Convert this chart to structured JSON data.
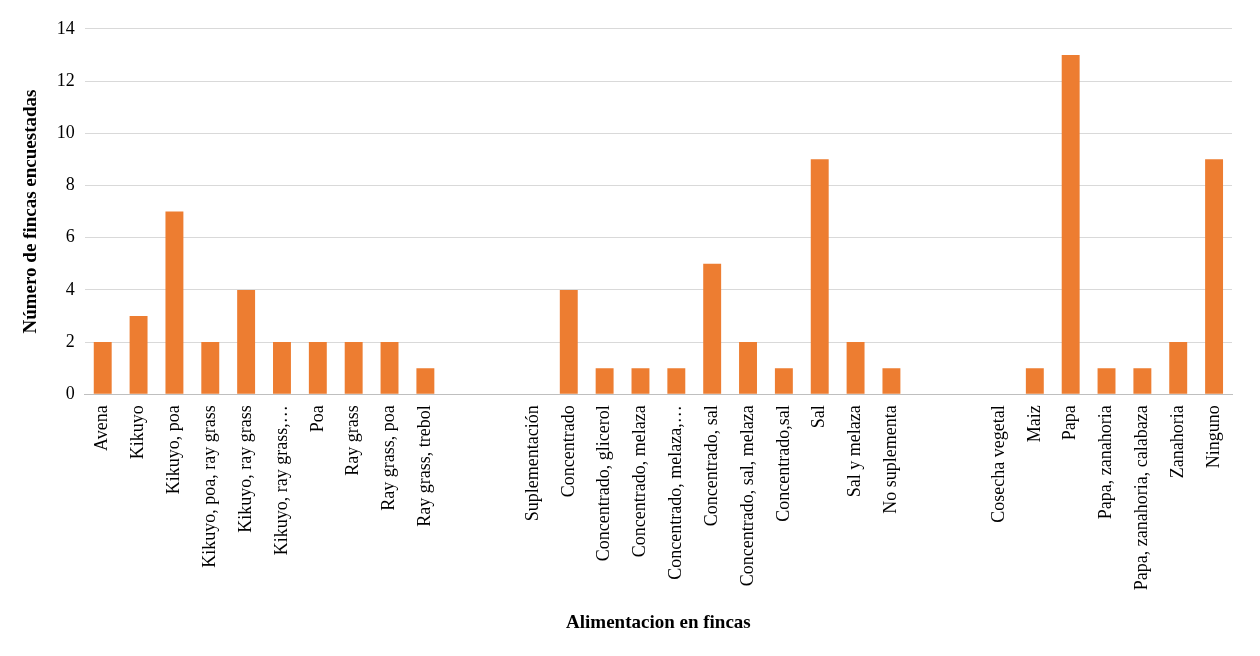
{
  "chart_data": {
    "type": "bar",
    "xlabel": "Alimentacion en fincas",
    "ylabel": "Número de fincas encuestadas",
    "categories": [
      "Avena",
      "Kikuyo",
      "Kikuyo, poa",
      "Kikuyo, poa, ray grass",
      "Kikuyo, ray grass",
      "Kikuyo, ray grass,…",
      "Poa",
      "Ray grass",
      "Ray grass, poa",
      "Ray grass, trebol",
      null,
      null,
      "Suplementación",
      "Concentrado",
      "Concentrado, glicerol",
      "Concentrado, melaza",
      "Concentrado, melaza,…",
      "Concentrado, sal",
      "Concentrado, sal, melaza",
      "Concentrado,sal",
      "Sal",
      "Sal y melaza",
      "No suplementa",
      null,
      null,
      "Cosecha vegetal",
      "Maiz",
      "Papa",
      "Papa, zanahoria",
      "Papa, zanahoria, calabaza",
      "Zanahoria",
      "Ninguno"
    ],
    "values": [
      2,
      3,
      7,
      2,
      4,
      2,
      2,
      2,
      2,
      1,
      null,
      null,
      null,
      4,
      1,
      1,
      1,
      5,
      2,
      1,
      9,
      2,
      1,
      null,
      null,
      null,
      1,
      13,
      1,
      1,
      2,
      9
    ],
    "color": "#ed7d31",
    "ylim": [
      0,
      14
    ],
    "yticks": [
      0,
      2,
      4,
      6,
      8,
      10,
      12,
      14
    ],
    "grid": "y",
    "legend": false
  }
}
